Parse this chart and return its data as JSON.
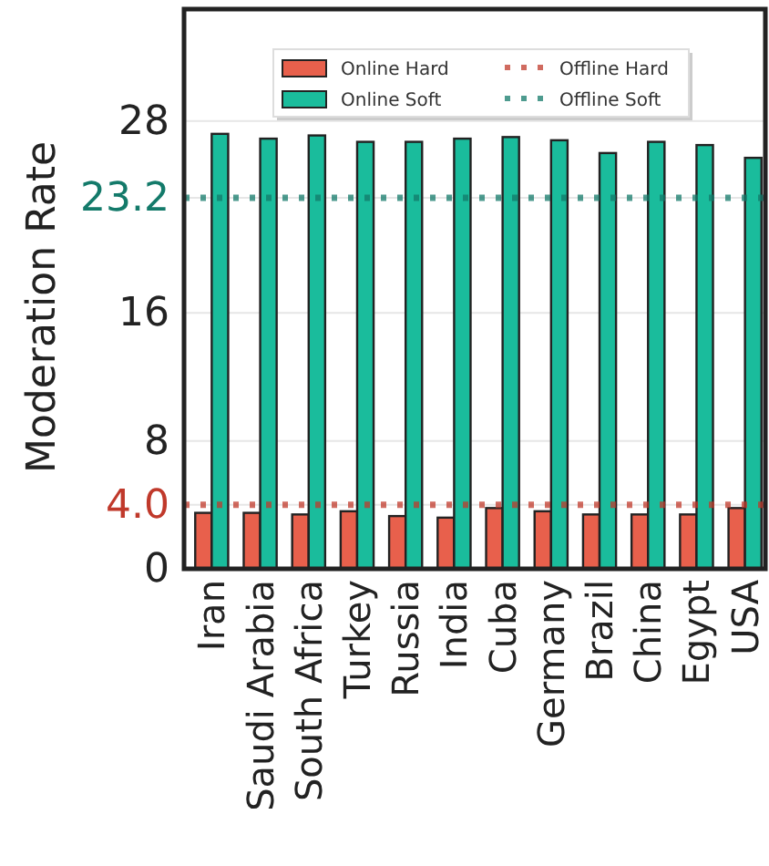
{
  "chart_data": {
    "type": "bar",
    "ylabel": "Moderation Rate",
    "categories": [
      "Iran",
      "Saudi Arabia",
      "South Africa",
      "Turkey",
      "Russia",
      "India",
      "Cuba",
      "Germany",
      "Brazil",
      "China",
      "Egypt",
      "USA"
    ],
    "series": [
      {
        "name": "Online Hard",
        "color": "#e8604c",
        "values": [
          3.5,
          3.5,
          3.4,
          3.6,
          3.3,
          3.2,
          3.8,
          3.6,
          3.4,
          3.4,
          3.4,
          3.8
        ]
      },
      {
        "name": "Online Soft",
        "color": "#1abc9c",
        "values": [
          27.2,
          26.9,
          27.1,
          26.7,
          26.7,
          26.9,
          27.0,
          26.8,
          26.0,
          26.7,
          26.5,
          25.7
        ]
      }
    ],
    "ylim": [
      0,
      35
    ],
    "yticks": [
      0,
      {
        "value": 4,
        "label": "4.0"
      },
      8,
      16,
      {
        "value": 23.2,
        "label": "23.2"
      },
      28
    ],
    "ref_lines": [
      {
        "axis": "y",
        "value": 4.0,
        "label": "Offline Hard",
        "color": "#c0392b",
        "line_style": "dotted"
      },
      {
        "axis": "y",
        "value": 23.2,
        "label": "Offline Soft",
        "color": "#137a6a",
        "line_style": "dotted"
      }
    ],
    "grid": "y",
    "legend": "top"
  }
}
